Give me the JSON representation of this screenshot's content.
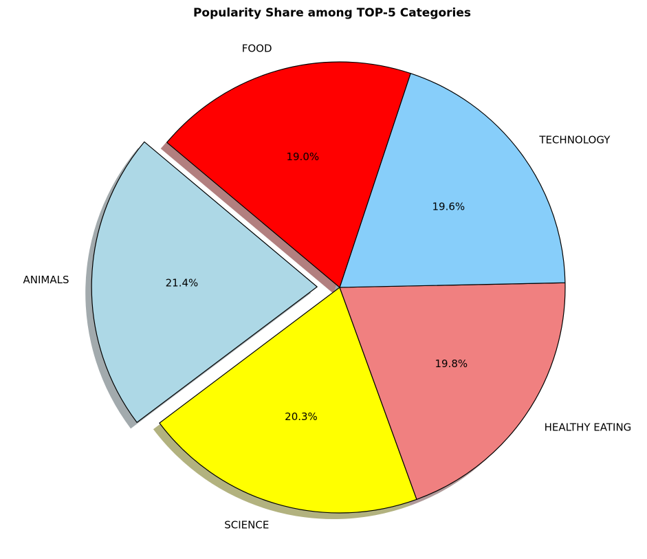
{
  "chart_data": {
    "type": "pie",
    "title": "Popularity Share among TOP-5 Categories",
    "slices": [
      {
        "label": "ANIMALS",
        "percent": 21.4,
        "percent_label": "21.4%",
        "color": "#add8e6",
        "explode": true
      },
      {
        "label": "SCIENCE",
        "percent": 20.3,
        "percent_label": "20.3%",
        "color": "#ffff00",
        "explode": false
      },
      {
        "label": "HEALTHY EATING",
        "percent": 19.8,
        "percent_label": "19.8%",
        "color": "#f08080",
        "explode": false
      },
      {
        "label": "TECHNOLOGY",
        "percent": 19.6,
        "percent_label": "19.6%",
        "color": "#87cefa",
        "explode": false
      },
      {
        "label": "FOOD",
        "percent": 19.0,
        "percent_label": "19.0%",
        "color": "#ff0000",
        "explode": false
      }
    ],
    "shadow": true,
    "start_angle_deg": 140,
    "direction": "counterclockwise"
  }
}
